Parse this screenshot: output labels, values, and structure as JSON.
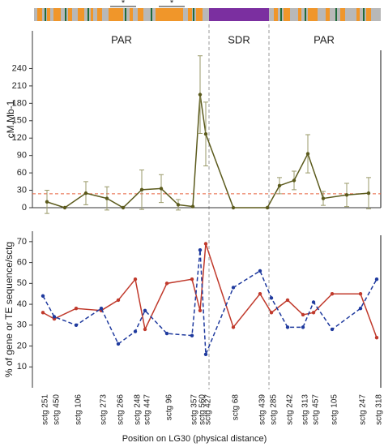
{
  "chart_data": [
    {
      "type": "line",
      "y_label": "cM.Mb-1",
      "region_labels": [
        "PAR",
        "SDR",
        "PAR"
      ],
      "ylim": [
        0,
        305
      ],
      "yticks": [
        0,
        30,
        60,
        90,
        120,
        150,
        180,
        210,
        240
      ],
      "threshold": 24,
      "threshold_color": "#e8603c",
      "series": [
        {
          "color": "#5b5a1c",
          "values": [
            10,
            0,
            25,
            16,
            0,
            31,
            33,
            5,
            2,
            195,
            127,
            0,
            0,
            38,
            47,
            93,
            16,
            22,
            25,
            null
          ],
          "errors": [
            20,
            null,
            20,
            20,
            null,
            34,
            24,
            9,
            null,
            67,
            55,
            null,
            null,
            14,
            16,
            33,
            12,
            20,
            27,
            null
          ]
        }
      ]
    },
    {
      "type": "line",
      "y_label": "% of gene or TE sequence/sctg",
      "x_label": "Position on LG30 (physical distance)",
      "ylim": [
        0,
        75
      ],
      "yticks": [
        10,
        20,
        30,
        40,
        50,
        60,
        70
      ],
      "categories": [
        "sctg 251",
        "sctg 450",
        "sctg 106",
        "sctg 273",
        "sctg 266",
        "sctg 248",
        "sctg 447",
        "sctg 96",
        "sctg 357",
        "sctg 560",
        "sctg 427",
        "sctg 68",
        "sctg 439",
        "sctg 285",
        "sctg 242",
        "sctg 313",
        "sctg 457",
        "sctg 105",
        "sctg 247",
        "sctg 318"
      ],
      "series": [
        {
          "color": "#c0392b",
          "dash": false,
          "values": [
            36,
            33,
            38,
            37,
            42,
            52,
            28,
            50,
            52,
            37,
            69,
            29,
            45,
            36,
            42,
            35,
            36,
            45,
            45,
            24
          ]
        },
        {
          "color": "#1f3a9e",
          "dash": true,
          "values": [
            44,
            34,
            30,
            38,
            21,
            27,
            37,
            26,
            25,
            66,
            16,
            48,
            56,
            43,
            29,
            29,
            41,
            28,
            38,
            52
          ]
        }
      ]
    }
  ]
}
